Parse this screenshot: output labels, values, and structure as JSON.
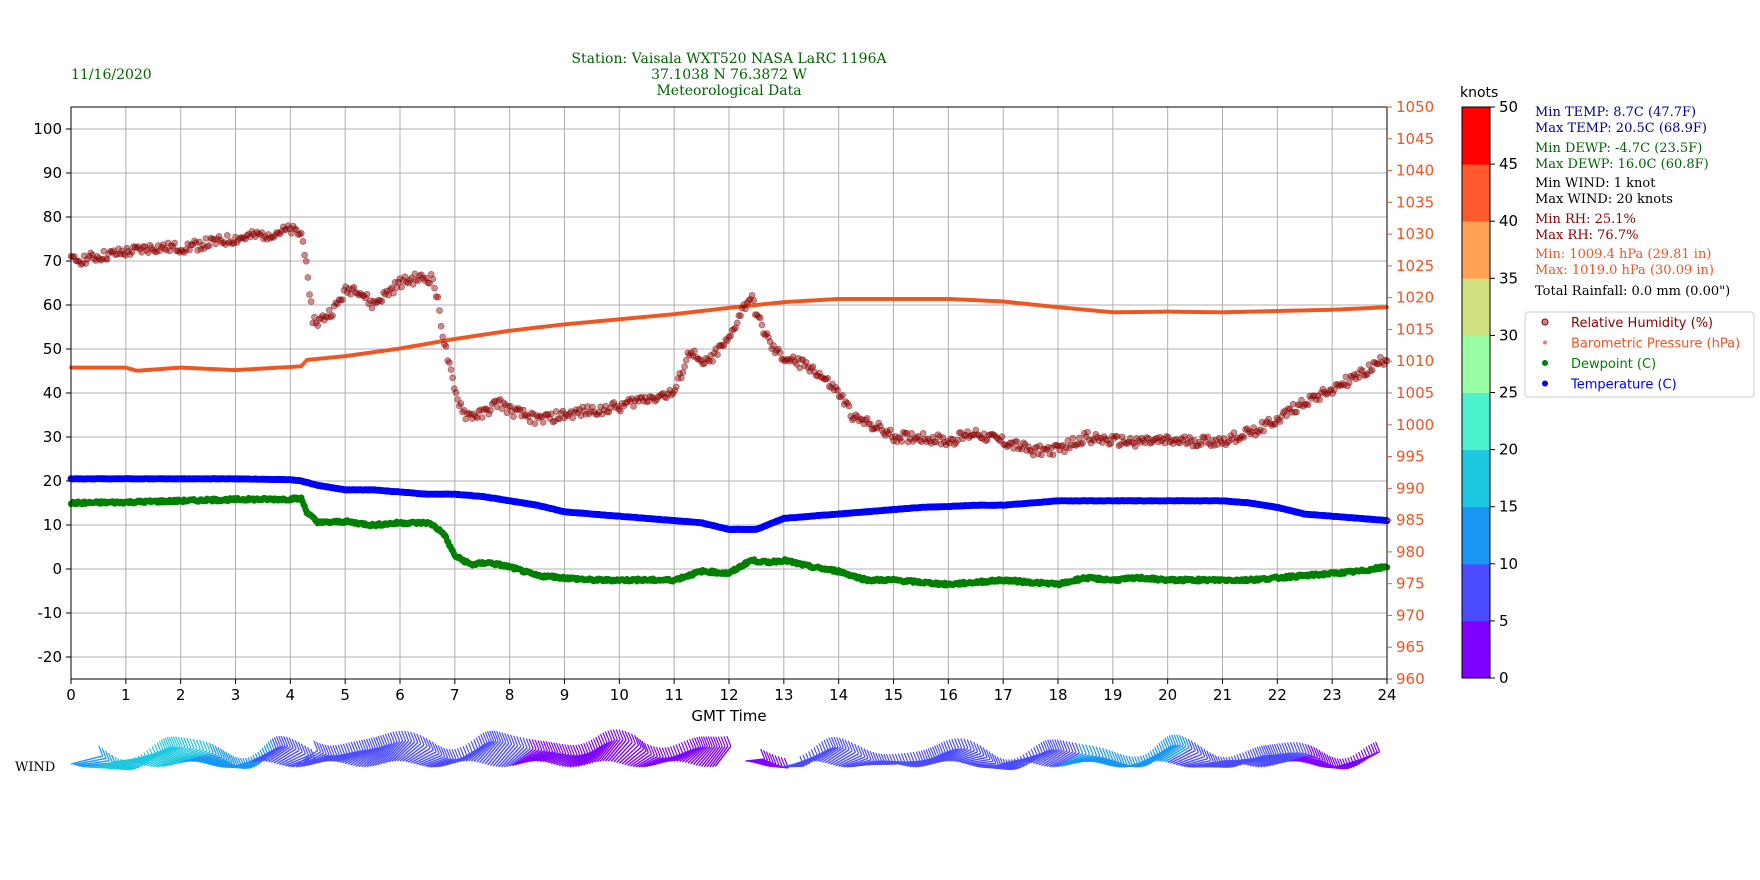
{
  "header": {
    "date": "11/16/2020",
    "title_lines": [
      "Station:  Vaisala WXT520  NASA LaRC 1196A",
      "37.1038 N 76.3872 W",
      "Meteorological Data"
    ]
  },
  "colors": {
    "title": "#006400",
    "rh": "#8b0000",
    "pressure": "#ee5522",
    "dewpoint": "#008000",
    "temperature": "#0000ff",
    "grid": "#b0b0b0"
  },
  "chart_data": {
    "type": "scatter",
    "xlabel": "GMT Time",
    "xlim": [
      0,
      24
    ],
    "x_ticks": [
      0,
      1,
      2,
      3,
      4,
      5,
      6,
      7,
      8,
      9,
      10,
      11,
      12,
      13,
      14,
      15,
      16,
      17,
      18,
      19,
      20,
      21,
      22,
      23,
      24
    ],
    "y_left": {
      "lim": [
        -25,
        105
      ],
      "ticks": [
        -20,
        -10,
        0,
        10,
        20,
        30,
        40,
        50,
        60,
        70,
        80,
        90,
        100
      ]
    },
    "y_right": {
      "lim": [
        960,
        1050
      ],
      "ticks": [
        960,
        965,
        970,
        975,
        980,
        985,
        990,
        995,
        1000,
        1005,
        1010,
        1015,
        1020,
        1025,
        1030,
        1035,
        1040,
        1045,
        1050
      ]
    },
    "grid": true,
    "legend_position": "right",
    "series": [
      {
        "key": "rh",
        "name": "Relative Humidity (%)",
        "axis": "left",
        "x": [
          0,
          0.5,
          1,
          1.5,
          2,
          2.5,
          3,
          3.5,
          4,
          4.2,
          4.3,
          4.4,
          4.5,
          4.8,
          5,
          5.2,
          5.5,
          5.8,
          6,
          6.3,
          6.6,
          6.7,
          6.8,
          7,
          7.2,
          7.5,
          7.8,
          8,
          8.5,
          9,
          9.5,
          10,
          10.5,
          11,
          11.3,
          11.5,
          12,
          12.2,
          12.4,
          12.5,
          12.6,
          12.8,
          13,
          13.5,
          14,
          14.3,
          14.6,
          15,
          15.5,
          16,
          16.5,
          17,
          17.5,
          18,
          18.5,
          19,
          19.5,
          20,
          20.5,
          21,
          21.5,
          22,
          22.5,
          23,
          23.5,
          24
        ],
        "y": [
          70,
          71,
          72,
          73,
          73,
          74,
          75,
          76,
          77,
          76,
          70,
          57,
          56,
          59,
          63,
          64,
          60,
          63,
          65,
          66,
          66,
          60,
          52,
          40,
          35,
          35,
          38,
          36,
          34,
          35,
          36,
          37,
          39,
          40,
          50,
          46,
          52,
          58,
          62,
          58,
          55,
          50,
          48,
          46,
          40,
          34,
          33,
          30,
          30,
          29,
          31,
          29,
          27,
          27,
          30,
          29,
          29,
          29,
          29,
          29,
          31,
          34,
          38,
          41,
          44,
          48
        ]
      },
      {
        "key": "pressure",
        "name": "Barometric Pressure (hPa)",
        "axis": "right",
        "x": [
          0,
          1,
          1.2,
          2,
          3,
          4,
          4.2,
          4.3,
          5,
          6,
          7,
          8,
          9,
          10,
          11,
          12,
          13,
          14,
          15,
          16,
          17,
          18,
          19,
          20,
          21,
          22,
          23,
          24
        ],
        "y": [
          1009,
          1009,
          1008.5,
          1009,
          1008.6,
          1009.1,
          1009.2,
          1010.2,
          1010.8,
          1012,
          1013.5,
          1014.8,
          1015.8,
          1016.6,
          1017.4,
          1018.4,
          1019.3,
          1019.8,
          1019.8,
          1019.8,
          1019.4,
          1018.5,
          1017.7,
          1017.8,
          1017.7,
          1017.9,
          1018.1,
          1018.5
        ]
      },
      {
        "key": "dewpoint",
        "name": "Dewpoint (C)",
        "axis": "left",
        "x": [
          0,
          1,
          2,
          3,
          4,
          4.2,
          4.3,
          4.5,
          5,
          5.5,
          6,
          6.5,
          6.6,
          6.8,
          7,
          7.3,
          7.6,
          8,
          8.5,
          9,
          9.5,
          10,
          10.5,
          11,
          11.5,
          12,
          12.4,
          12.7,
          13,
          13.5,
          14,
          14.5,
          15,
          15.5,
          16,
          16.5,
          17,
          17.5,
          18,
          18.5,
          19,
          19.5,
          20,
          20.5,
          21,
          21.5,
          22,
          22.5,
          23,
          23.5,
          24
        ],
        "y": [
          15,
          15.2,
          15.5,
          15.8,
          15.9,
          16,
          13,
          10.5,
          10.8,
          10,
          10.5,
          10.5,
          10,
          8,
          3,
          1,
          1.5,
          0.5,
          -1.5,
          -2,
          -2.5,
          -2.5,
          -2.5,
          -2.5,
          -0.5,
          -1,
          2,
          1.5,
          2,
          0.5,
          -0.5,
          -2.5,
          -2.5,
          -3,
          -3.5,
          -3,
          -2.5,
          -3,
          -3.5,
          -2,
          -2.5,
          -2,
          -2.5,
          -2.5,
          -2.5,
          -2.5,
          -2,
          -1.5,
          -1,
          -0.5,
          0.5
        ]
      },
      {
        "key": "temperature",
        "name": "Temperature (C)",
        "axis": "left",
        "x": [
          0,
          1,
          2,
          3,
          4,
          4.2,
          4.5,
          5,
          5.5,
          6,
          6.5,
          7,
          7.5,
          8,
          8.5,
          9,
          9.5,
          10,
          10.5,
          11,
          11.5,
          12,
          12.5,
          13,
          13.5,
          14,
          14.5,
          15,
          15.5,
          16,
          16.5,
          17,
          17.5,
          18,
          18.5,
          19,
          19.5,
          20,
          20.5,
          21,
          21.5,
          22,
          22.5,
          23,
          23.5,
          24
        ],
        "y": [
          20.5,
          20.5,
          20.5,
          20.5,
          20.3,
          20,
          19,
          18,
          18,
          17.5,
          17,
          17,
          16.5,
          15.5,
          14.5,
          13,
          12.5,
          12,
          11.5,
          11,
          10.5,
          9,
          9,
          11.5,
          12,
          12.5,
          13,
          13.5,
          14,
          14.2,
          14.5,
          14.5,
          15,
          15.5,
          15.5,
          15.5,
          15.5,
          15.5,
          15.5,
          15.5,
          15,
          14,
          12.5,
          12,
          11.5,
          11
        ]
      }
    ],
    "wind": {
      "label": "WIND",
      "x": [
        0,
        0.5,
        1,
        1.5,
        2,
        2.5,
        3,
        3.5,
        4,
        4.5,
        5,
        5.5,
        6,
        6.5,
        7,
        7.5,
        8,
        8.5,
        9,
        9.5,
        10,
        10.2,
        10.5,
        11,
        11.3,
        11.6,
        12.5,
        13,
        13.5,
        14,
        14.5,
        15,
        15.5,
        16,
        16.5,
        17,
        17.5,
        18,
        18.5,
        19,
        19.5,
        20,
        20.5,
        21,
        21.5,
        22,
        22.5,
        23,
        23.5
      ],
      "speed": [
        14,
        16,
        17,
        16,
        15,
        13,
        11,
        9,
        8,
        7,
        6,
        6,
        5,
        6,
        6,
        5,
        5,
        4,
        4,
        4,
        4,
        2,
        3,
        3,
        2,
        2,
        3,
        6,
        8,
        8,
        7,
        9,
        8,
        8,
        8,
        9,
        9,
        10,
        12,
        13,
        12,
        10,
        9,
        9,
        7,
        6,
        4,
        3,
        3
      ],
      "base_offset": [
        0,
        0,
        0,
        0,
        0,
        0,
        0,
        0,
        0,
        0,
        0,
        0,
        0,
        0,
        0,
        0,
        0,
        0,
        0,
        0,
        0,
        0,
        0,
        0,
        0,
        0,
        0,
        0,
        0,
        0,
        0,
        0,
        0,
        0,
        0,
        0,
        0,
        0,
        0,
        0,
        0,
        0,
        0,
        0,
        0,
        0,
        0,
        0,
        0
      ],
      "colorbar": {
        "title": "knots",
        "ticks": [
          0,
          5,
          10,
          15,
          20,
          25,
          30,
          35,
          40,
          45,
          50
        ],
        "colors": [
          "#7f00ff",
          "#4c4cff",
          "#1996f3",
          "#1cc7df",
          "#4cf2ce",
          "#99fea4",
          "#cfe27f",
          "#ffa256",
          "#ff5a2d",
          "#ff0000"
        ]
      }
    },
    "stats": [
      {
        "text": "Min TEMP: 8.7C (47.7F)",
        "color": "#00008b"
      },
      {
        "text": "Max TEMP: 20.5C (68.9F)",
        "color": "#00008b"
      },
      {
        "text": "Min DEWP: -4.7C (23.5F)",
        "color": "#006400"
      },
      {
        "text": "Max DEWP: 16.0C (60.8F)",
        "color": "#006400"
      },
      {
        "text": "Min WIND: 1 knot",
        "color": "#000000"
      },
      {
        "text": "Max WIND: 20 knots",
        "color": "#000000"
      },
      {
        "text": "Min RH: 25.1%",
        "color": "#8b0000"
      },
      {
        "text": "Max RH: 76.7%",
        "color": "#8b0000"
      },
      {
        "text": "Min: 1009.4 hPa (29.81 in)",
        "color": "#ee5522"
      },
      {
        "text": "Max: 1019.0 hPa (30.09 in)",
        "color": "#ee5522"
      },
      {
        "text": "Total Rainfall: 0.0 mm (0.00\")",
        "color": "#000000"
      }
    ]
  }
}
